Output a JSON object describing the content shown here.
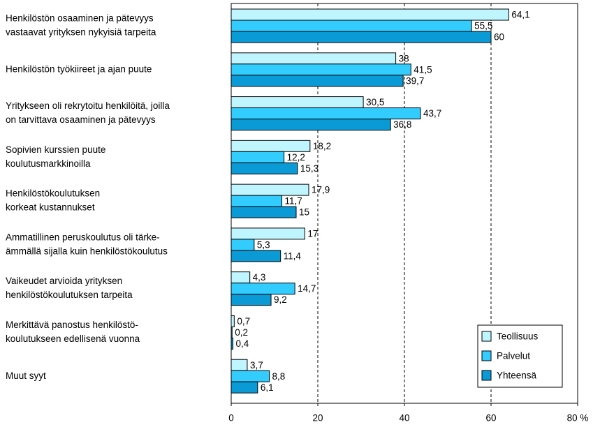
{
  "chart_data": {
    "type": "bar",
    "orientation": "horizontal",
    "categories": [
      [
        "Henkilöstön osaaminen ja pätevyys",
        "vastaavat yrityksen nykyisiä tarpeita"
      ],
      [
        "Henkilöstön työkiireet ja ajan puute"
      ],
      [
        "Yritykseen oli rekrytoitu henkilöitä, joilla",
        "on tarvittava osaaminen ja pätevyys"
      ],
      [
        "Sopivien kurssien puute",
        "koulutusmarkkinoilla"
      ],
      [
        "Henkilöstökoulutuksen",
        "korkeat kustannukset"
      ],
      [
        "Ammatillinen peruskoulutus oli tärke-",
        "ämmällä sijalla kuin henkilöstökoulutus"
      ],
      [
        "Vaikeudet arvioida yrityksen",
        "henkilöstökoulutuksen tarpeita"
      ],
      [
        "Merkittävä panostus henkilöstö-",
        "koulutukseen edellisenä vuonna"
      ],
      [
        "Muut syyt"
      ]
    ],
    "series": [
      {
        "name": "Teollisuus",
        "color": "#bff5ff",
        "values": [
          64.1,
          38,
          30.5,
          18.2,
          17.9,
          17,
          4.3,
          0.7,
          3.7
        ],
        "value_labels": [
          "64,1",
          "38",
          "30,5",
          "18,2",
          "17,9",
          "17",
          "4,3",
          "0,7",
          "3,7"
        ]
      },
      {
        "name": "Palvelut",
        "color": "#33ccff",
        "values": [
          55.5,
          41.5,
          43.7,
          12.2,
          11.7,
          5.3,
          14.7,
          0.2,
          8.8
        ],
        "value_labels": [
          "55,5",
          "41,5",
          "43,7",
          "12,2",
          "11,7",
          "5,3",
          "14,7",
          "0,2",
          "8,8"
        ]
      },
      {
        "name": "Yhteensä",
        "color": "#0a9ad6",
        "values": [
          60,
          39.7,
          36.8,
          15.3,
          15,
          11.4,
          9.2,
          0.4,
          6.1
        ],
        "value_labels": [
          "60",
          "39,7",
          "36,8",
          "15,3",
          "15",
          "11,4",
          "9,2",
          "0,4",
          "6,1"
        ]
      }
    ],
    "xlim": [
      0,
      80
    ],
    "xticks": [
      0,
      20,
      40,
      60,
      {
        "value": 80,
        "label": "80 %"
      }
    ],
    "grid": true,
    "legend": "lower right"
  }
}
